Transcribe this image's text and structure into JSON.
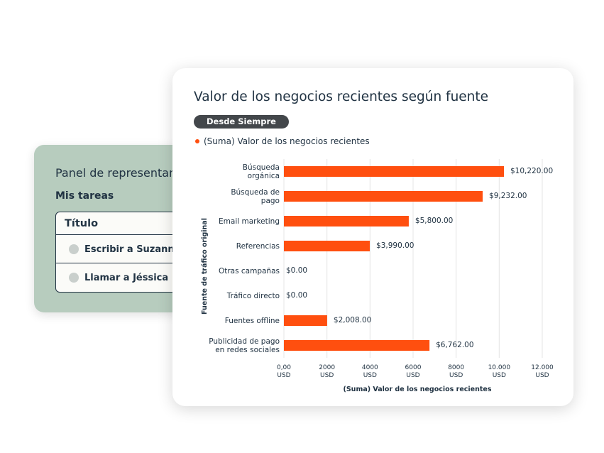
{
  "panel": {
    "title": "Panel de representant",
    "subtitle": "Mis tareas",
    "table_header": "Título",
    "tasks": [
      "Escribir a Suzanne",
      "Llamar a Jéssica"
    ]
  },
  "chart_data": {
    "type": "bar",
    "orientation": "horizontal",
    "title": "Valor de los negocios recientes según fuente",
    "filter": "Desde Siempre",
    "xlabel": "(Suma) Valor de los negocios recientes",
    "ylabel": "Fuente de tráfico original",
    "categories": [
      "Búsqueda\norgánica",
      "Búsqueda de\npago",
      "Email marketing",
      "Referencias",
      "Otras campañas",
      "Tráfico directo",
      "Fuentes offline",
      "Publicidad de pago\nen redes sociales"
    ],
    "series": [
      {
        "name": "(Suma) Valor de los negocios recientes",
        "color": "#ff4f0f",
        "values": [
          10220,
          9232,
          5800,
          3990,
          0,
          0,
          2008,
          6762
        ],
        "value_labels": [
          "$10,220.00",
          "$9,232.00",
          "$5,800.00",
          "$3,990.00",
          "$0.00",
          "$0.00",
          "$2,008.00",
          "$6,762.00"
        ]
      }
    ],
    "xlim": [
      0,
      12000
    ],
    "xticks": [
      {
        "value": 0,
        "label": "0,00\nUSD"
      },
      {
        "value": 2000,
        "label": "2000\nUSD"
      },
      {
        "value": 4000,
        "label": "4000\nUSD"
      },
      {
        "value": 6000,
        "label": "6000\nUSD"
      },
      {
        "value": 8000,
        "label": "8000\nUSD"
      },
      {
        "value": 10000,
        "label": "10.000\nUSD"
      },
      {
        "value": 12000,
        "label": "12.000\nUSD"
      }
    ],
    "grid": true
  }
}
